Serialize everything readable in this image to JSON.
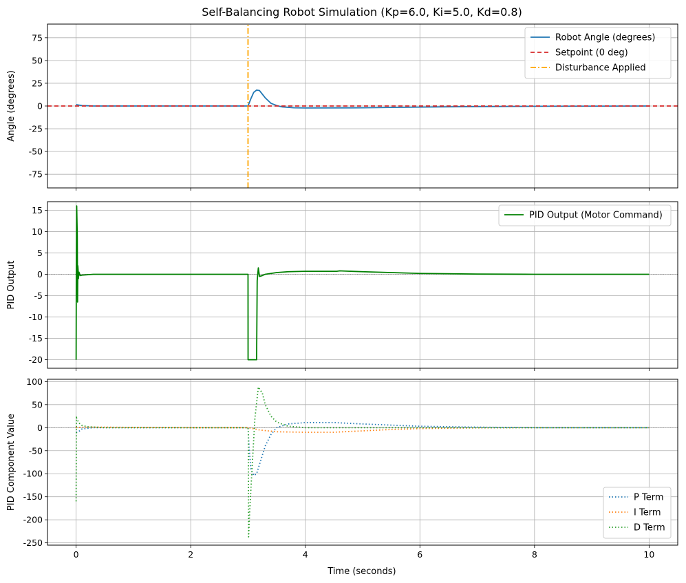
{
  "colors": {
    "angle": "#1f77b4",
    "setpoint": "#d62728",
    "disturbance": "#ffa500",
    "pid_output": "#008000",
    "p_term": "#1f77b4",
    "i_term": "#ff7f0e",
    "d_term": "#2ca02c"
  },
  "chart_data": [
    {
      "type": "line",
      "title": "Self-Balancing Robot Simulation (Kp=6.0, Ki=5.0, Kd=0.8)",
      "ylabel": "Angle (degrees)",
      "xlabel": "",
      "xlim": [
        -0.5,
        10.5
      ],
      "ylim": [
        -90,
        90
      ],
      "yticks": [
        -75,
        -50,
        -25,
        0,
        25,
        50,
        75
      ],
      "grid": true,
      "legend_position": "top-right",
      "series": [
        {
          "name": "Robot Angle (degrees)",
          "style": "solid",
          "x": [
            0,
            0.1,
            0.3,
            1,
            2,
            3,
            3.05,
            3.1,
            3.15,
            3.2,
            3.25,
            3.3,
            3.4,
            3.5,
            3.6,
            3.8,
            4,
            5,
            6,
            7,
            8,
            10
          ],
          "y": [
            1.5,
            0.5,
            0,
            0,
            0,
            0,
            8,
            15,
            17.5,
            17,
            13,
            9,
            3,
            0.5,
            -1,
            -2,
            -2.2,
            -2,
            -1.2,
            -0.6,
            -0.3,
            0
          ]
        },
        {
          "name": "Setpoint (0 deg)",
          "style": "dashed",
          "x": [
            -0.5,
            10.5
          ],
          "y": [
            0,
            0
          ]
        },
        {
          "name": "Disturbance Applied",
          "style": "dashdot",
          "x": [
            3,
            3
          ],
          "y": [
            -90,
            90
          ]
        }
      ]
    },
    {
      "type": "line",
      "title": "",
      "ylabel": "PID Output",
      "xlabel": "",
      "xlim": [
        -0.5,
        10.5
      ],
      "ylim": [
        -22,
        17
      ],
      "yticks": [
        -20,
        -15,
        -10,
        -5,
        0,
        5,
        10,
        15
      ],
      "grid": true,
      "legend_position": "top-right",
      "series": [
        {
          "name": "PID Output (Motor Command)",
          "style": "solid",
          "x": [
            0,
            0.003,
            0.01,
            0.02,
            0.025,
            0.03,
            0.035,
            0.04,
            0.05,
            0.07,
            0.1,
            0.3,
            1,
            2,
            3,
            3.001,
            3.15,
            3.16,
            3.18,
            3.2,
            3.25,
            3.3,
            3.5,
            3.7,
            4,
            4.55,
            4.6,
            5,
            6,
            7,
            8,
            10
          ],
          "y": [
            -20,
            0,
            16,
            9,
            -6.5,
            2,
            1,
            -1,
            0.5,
            -0.3,
            -0.2,
            0,
            0,
            0,
            0,
            -20,
            -20,
            -1.5,
            1.5,
            -0.5,
            -0.3,
            0,
            0.4,
            0.6,
            0.7,
            0.7,
            0.8,
            0.6,
            0.2,
            0.05,
            0,
            0
          ]
        }
      ]
    },
    {
      "type": "line",
      "title": "",
      "ylabel": "PID Component Value",
      "xlabel": "Time (seconds)",
      "xlim": [
        -0.5,
        10.5
      ],
      "ylim": [
        -255,
        105
      ],
      "yticks": [
        -250,
        -200,
        -150,
        -100,
        -50,
        0,
        50,
        100
      ],
      "xticks": [
        0,
        2,
        4,
        6,
        8,
        10
      ],
      "grid": true,
      "legend_position": "bottom-right",
      "series": [
        {
          "name": "P Term",
          "style": "dotted",
          "x": [
            0,
            0.01,
            0.05,
            0.1,
            0.3,
            1,
            2,
            3,
            3.02,
            3.05,
            3.1,
            3.15,
            3.2,
            3.25,
            3.3,
            3.4,
            3.5,
            3.7,
            4,
            4.5,
            5,
            6,
            7,
            8,
            10
          ],
          "y": [
            -10,
            -10,
            -8,
            -3,
            0,
            0,
            0,
            0,
            -45,
            -90,
            -104,
            -100,
            -80,
            -60,
            -40,
            -15,
            0,
            8,
            11,
            11,
            8,
            3,
            1,
            0,
            0
          ]
        },
        {
          "name": "I Term",
          "style": "dotted",
          "x": [
            0,
            0.1,
            0.5,
            1,
            2,
            3,
            3.2,
            3.5,
            4,
            4.5,
            5,
            5.5,
            6,
            7,
            8,
            10
          ],
          "y": [
            0,
            1,
            1,
            0.5,
            0,
            0,
            -5,
            -9,
            -10,
            -10,
            -7,
            -4,
            -2,
            -0.5,
            0,
            0
          ]
        },
        {
          "name": "D Term",
          "style": "dotted",
          "x": [
            0,
            0.005,
            0.01,
            0.03,
            0.05,
            0.1,
            0.2,
            0.5,
            1,
            2,
            3,
            3.005,
            3.01,
            3.03,
            3.07,
            3.12,
            3.18,
            3.25,
            3.3,
            3.4,
            3.5,
            3.7,
            4,
            5,
            10
          ],
          "y": [
            -160,
            25,
            20,
            15,
            10,
            5,
            2,
            0,
            0,
            0,
            0,
            -5,
            -237,
            -180,
            -90,
            20,
            88,
            75,
            50,
            25,
            12,
            3,
            0,
            0,
            0
          ]
        }
      ]
    }
  ]
}
